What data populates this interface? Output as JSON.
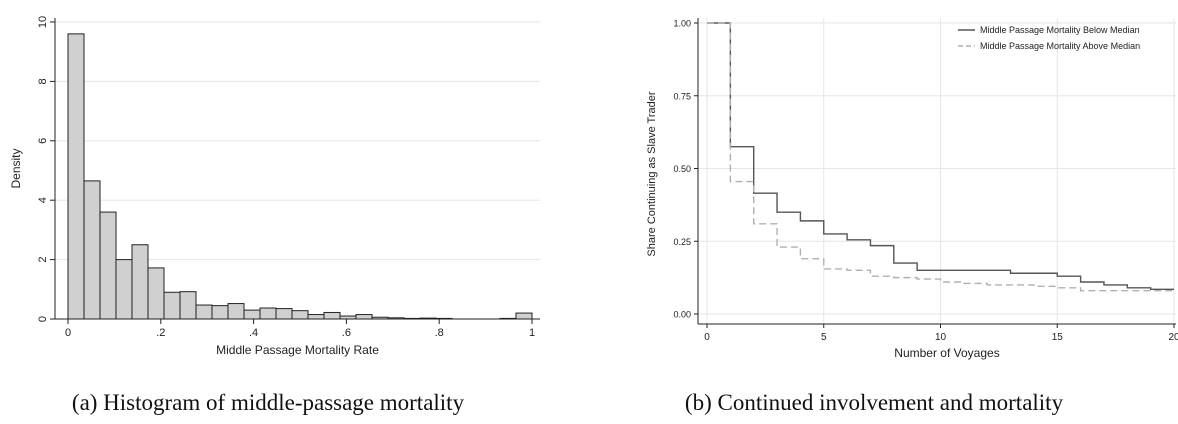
{
  "figure": {
    "captions": {
      "a": "(a) Histogram of middle-passage mortality",
      "b": "(b) Continued involvement and mortality"
    }
  },
  "chart_data": [
    {
      "type": "bar",
      "subtype": "histogram",
      "xlabel": "Middle Passage Mortality Rate",
      "ylabel": "Density",
      "xlim": [
        0,
        1
      ],
      "ylim": [
        0,
        10
      ],
      "bin_width": 0.0345,
      "x_ticks": [
        0,
        0.2,
        0.4,
        0.6,
        0.8,
        1
      ],
      "x_tick_labels": [
        "0",
        ".2",
        ".4",
        ".6",
        ".8",
        "1"
      ],
      "y_ticks": [
        0,
        2,
        4,
        6,
        8,
        10
      ],
      "y_tick_labels": [
        "0",
        "2",
        "4",
        "6",
        "8",
        "10"
      ],
      "bins_start": [
        0.0,
        0.0345,
        0.069,
        0.1034,
        0.1379,
        0.1724,
        0.2069,
        0.2414,
        0.2759,
        0.3103,
        0.3448,
        0.3793,
        0.4138,
        0.4483,
        0.4828,
        0.5172,
        0.5517,
        0.5862,
        0.6207,
        0.6552,
        0.6897,
        0.7241,
        0.7586,
        0.7931,
        0.8276,
        0.8621,
        0.8966,
        0.931,
        0.9655
      ],
      "values": [
        9.6,
        4.65,
        3.6,
        2.0,
        2.5,
        1.72,
        0.9,
        0.92,
        0.47,
        0.45,
        0.52,
        0.3,
        0.37,
        0.35,
        0.28,
        0.15,
        0.22,
        0.1,
        0.15,
        0.06,
        0.04,
        0.02,
        0.03,
        0.02,
        0.0,
        0.0,
        0.0,
        0.02,
        0.2
      ],
      "grid": true
    },
    {
      "type": "line",
      "subtype": "step",
      "xlabel": "Number of Voyages",
      "ylabel": "Share Continuing as Slave Trader",
      "xlim": [
        0,
        20
      ],
      "ylim": [
        0,
        1
      ],
      "x_ticks": [
        0,
        5,
        10,
        15,
        20
      ],
      "x_tick_labels": [
        "0",
        "5",
        "10",
        "15",
        "20"
      ],
      "y_ticks": [
        0,
        0.25,
        0.5,
        0.75,
        1
      ],
      "y_tick_labels": [
        "0.00",
        "0.25",
        "0.50",
        "0.75",
        "1.00"
      ],
      "legend_position": "top-right",
      "grid": true,
      "series": [
        {
          "name": "Middle Passage Mortality Below Median",
          "line_style": "solid",
          "color": "#555555",
          "x": [
            0,
            1,
            2,
            3,
            4,
            5,
            6,
            7,
            8,
            9,
            10,
            11,
            12,
            13,
            14,
            15,
            16,
            17,
            18,
            19,
            20
          ],
          "y": [
            1.0,
            0.575,
            0.415,
            0.35,
            0.32,
            0.275,
            0.255,
            0.235,
            0.175,
            0.15,
            0.15,
            0.15,
            0.15,
            0.14,
            0.14,
            0.13,
            0.11,
            0.1,
            0.09,
            0.085,
            0.085
          ]
        },
        {
          "name": "Middle Passage Mortality Above Median",
          "line_style": "dashed",
          "color": "#b0b0b0",
          "x": [
            0,
            1,
            2,
            3,
            4,
            5,
            6,
            7,
            8,
            9,
            10,
            11,
            12,
            13,
            14,
            15,
            16,
            17,
            18,
            19,
            20
          ],
          "y": [
            1.0,
            0.455,
            0.31,
            0.23,
            0.19,
            0.155,
            0.15,
            0.13,
            0.125,
            0.12,
            0.11,
            0.105,
            0.1,
            0.1,
            0.095,
            0.09,
            0.08,
            0.08,
            0.08,
            0.08,
            0.08
          ]
        }
      ]
    }
  ]
}
